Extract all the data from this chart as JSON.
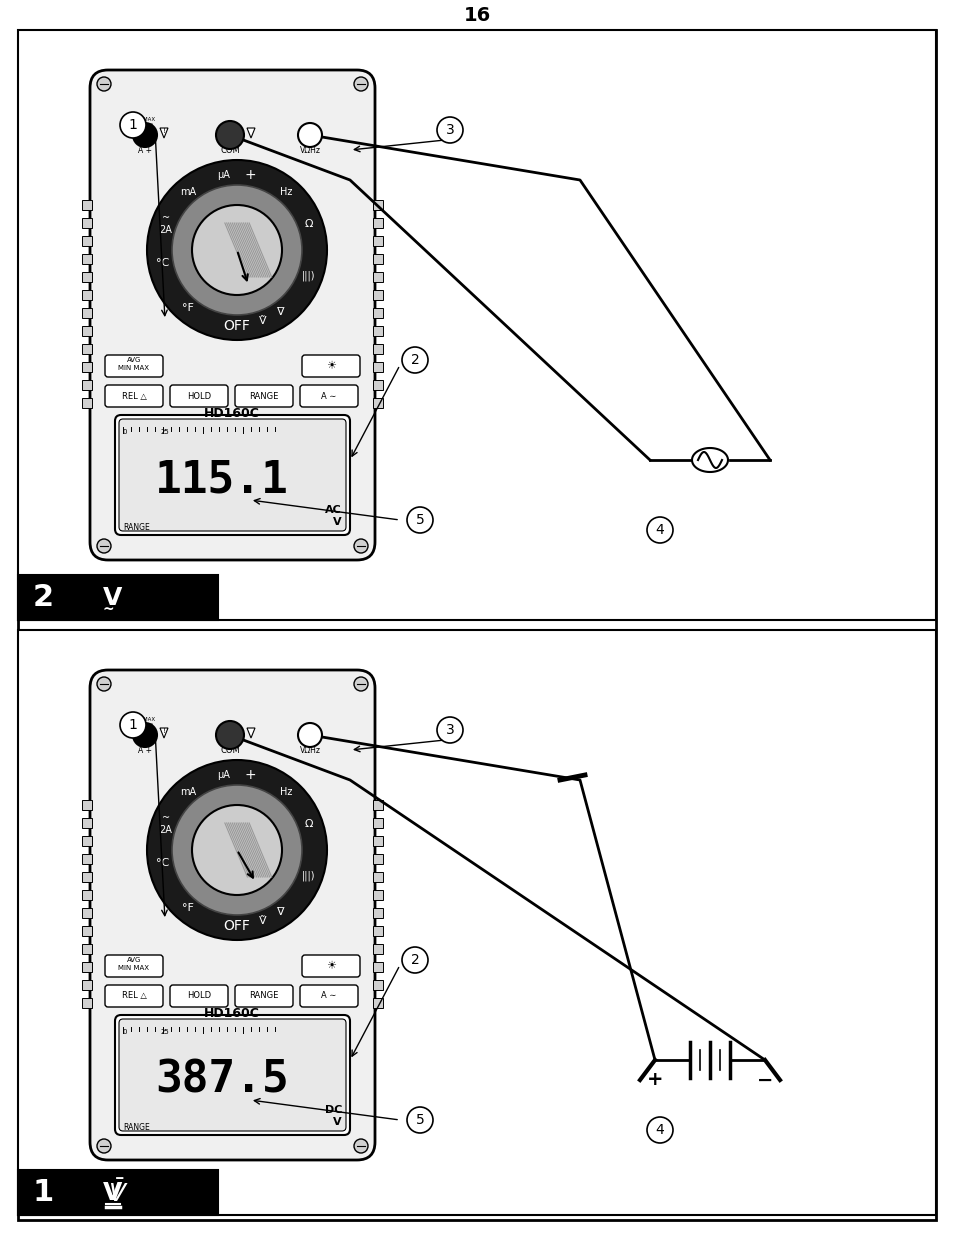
{
  "page_number": "16",
  "background_color": "#ffffff",
  "border_color": "#000000",
  "panel1": {
    "label": "1",
    "symbol": "̅V",
    "header_bg": "#000000",
    "header_text_color": "#ffffff",
    "display_reading": "387.5",
    "display_unit": "V\nDC",
    "model": "HD160C",
    "callouts": [
      "1",
      "2",
      "3",
      "4",
      "5"
    ],
    "source_type": "dc_battery"
  },
  "panel2": {
    "label": "2",
    "symbol": "Ṽ",
    "header_bg": "#000000",
    "header_text_color": "#ffffff",
    "display_reading": "115.1",
    "display_unit": "V\nAC",
    "model": "HD160C",
    "callouts": [
      "1",
      "2",
      "3",
      "4",
      "5"
    ],
    "source_type": "ac_source"
  }
}
